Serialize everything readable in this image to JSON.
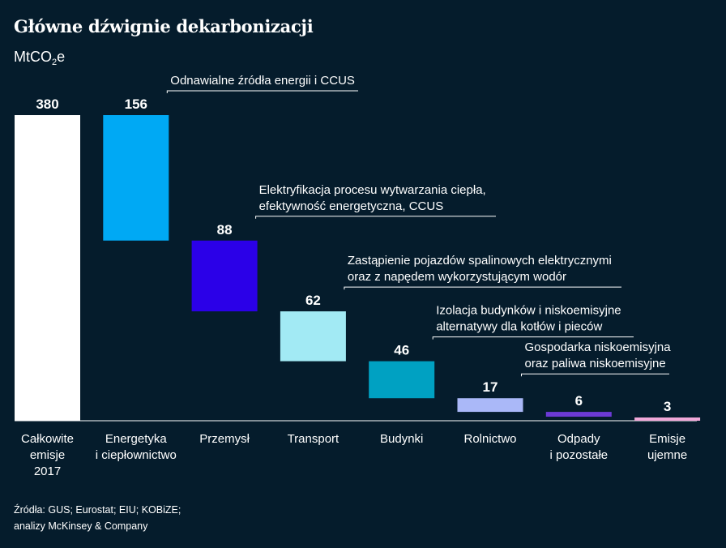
{
  "title": "Główne dźwignie dekarbonizacji",
  "unit": {
    "base": "MtCO",
    "sub": "2",
    "tail": "e"
  },
  "source": [
    "Źródła: GUS; Eurostat; EIU; KOBiZE;",
    "analizy McKinsey & Company"
  ],
  "chart_data": {
    "type": "waterfall",
    "title": "Główne dźwignie dekarbonizacji",
    "ylabel": "MtCO2e",
    "categories": [
      [
        "Całkowite",
        "emisje",
        "2017"
      ],
      [
        "Energetyka",
        "i ciepłownictwo"
      ],
      [
        "Przemysł"
      ],
      [
        "Transport"
      ],
      [
        "Budynki"
      ],
      [
        "Rolnictwo"
      ],
      [
        "Odpady",
        "i pozostałe"
      ],
      [
        "Emisje",
        "ujemne"
      ]
    ],
    "values": [
      380,
      156,
      88,
      62,
      46,
      17,
      6,
      3
    ],
    "value_labels": [
      "380",
      "156",
      "88",
      "62",
      "46",
      "17",
      "6",
      "3"
    ],
    "colors": [
      "#ffffff",
      "#00a9f4",
      "#2b00e8",
      "#a2eaf4",
      "#00a1c2",
      "#aab8f8",
      "#6c3ad6",
      "#f0a8d8"
    ],
    "annotations": [
      {
        "bar": 1,
        "lines": [
          "Odnawialne źródła energii i CCUS"
        ]
      },
      {
        "bar": 2,
        "lines": [
          "Elektryfikacja procesu wytwarzania ciepła,",
          "efektywność energetyczna, CCUS"
        ]
      },
      {
        "bar": 3,
        "lines": [
          "Zastąpienie pojazdów spalinowych elektrycznymi",
          "oraz z napędem wykorzystującym wodór"
        ]
      },
      {
        "bar": 4,
        "lines": [
          "Izolacja budynków i niskoemisyjne",
          "alternatywy dla kotłów i pieców"
        ]
      },
      {
        "bar": 5,
        "lines": [
          "Gospodarka niskoemisyjna",
          "oraz paliwa niskoemisyjne"
        ]
      }
    ]
  }
}
